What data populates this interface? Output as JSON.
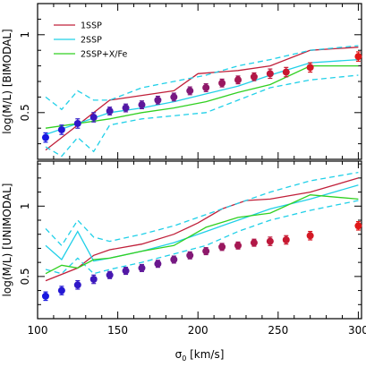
{
  "chart_data": [
    {
      "type": "line",
      "panel": "top",
      "ylabel": "log(M/L) [BIMODAL]",
      "xlim": [
        100,
        302
      ],
      "ylim": [
        0.2,
        1.2
      ],
      "yticks": [
        {
          "v": 0.5,
          "label": "0.5"
        },
        {
          "v": 1.0,
          "label": "1"
        }
      ],
      "legend": {
        "placement": "top-left",
        "entries": [
          {
            "label": "1SSP",
            "color": "#c0203a"
          },
          {
            "label": "2SSP",
            "color": "#20d0e8"
          },
          {
            "label": "2SSP+X/Fe",
            "color": "#30d020"
          }
        ]
      },
      "series": [
        {
          "key": "1ssp",
          "color": "#c0203a",
          "style": "solid",
          "x": [
            105,
            145,
            185,
            200,
            225,
            245,
            270,
            300
          ],
          "y": [
            0.26,
            0.58,
            0.64,
            0.75,
            0.77,
            0.8,
            0.9,
            0.92
          ]
        },
        {
          "key": "2ssp",
          "color": "#20d0e8",
          "style": "solid",
          "x": [
            105,
            125,
            145,
            165,
            185,
            205,
            225,
            245,
            270,
            300
          ],
          "y": [
            0.36,
            0.43,
            0.5,
            0.53,
            0.57,
            0.62,
            0.67,
            0.74,
            0.82,
            0.84
          ]
        },
        {
          "key": "2ssp_upper",
          "color": "#20d0e8",
          "style": "dashed",
          "x": [
            105,
            115,
            125,
            135,
            145,
            165,
            185,
            205,
            225,
            245,
            270,
            300
          ],
          "y": [
            0.6,
            0.52,
            0.64,
            0.58,
            0.58,
            0.66,
            0.7,
            0.74,
            0.8,
            0.84,
            0.9,
            0.93
          ]
        },
        {
          "key": "2ssp_lower",
          "color": "#20d0e8",
          "style": "dashed",
          "x": [
            105,
            115,
            125,
            135,
            145,
            165,
            185,
            205,
            225,
            245,
            270,
            300
          ],
          "y": [
            0.28,
            0.22,
            0.34,
            0.25,
            0.42,
            0.46,
            0.48,
            0.5,
            0.58,
            0.66,
            0.71,
            0.74
          ]
        },
        {
          "key": "2ssp_xfe",
          "color": "#30d020",
          "style": "solid",
          "x": [
            105,
            125,
            145,
            165,
            185,
            205,
            225,
            245,
            270,
            300
          ],
          "y": [
            0.4,
            0.43,
            0.46,
            0.5,
            0.53,
            0.57,
            0.63,
            0.68,
            0.8,
            0.8
          ]
        }
      ],
      "points": {
        "x": [
          105,
          115,
          125,
          135,
          145,
          155,
          165,
          175,
          185,
          195,
          205,
          215,
          225,
          235,
          245,
          255,
          270,
          300
        ],
        "y": [
          0.34,
          0.39,
          0.43,
          0.47,
          0.51,
          0.53,
          0.55,
          0.58,
          0.6,
          0.64,
          0.66,
          0.69,
          0.71,
          0.73,
          0.75,
          0.76,
          0.79,
          0.86
        ],
        "yerr": [
          0.03,
          0.03,
          0.03,
          0.03,
          0.025,
          0.025,
          0.025,
          0.025,
          0.025,
          0.025,
          0.025,
          0.025,
          0.025,
          0.025,
          0.03,
          0.03,
          0.03,
          0.03
        ]
      }
    },
    {
      "type": "line",
      "panel": "bottom",
      "ylabel": "log(M/L) [UNIMODAL]",
      "xlabel_parts": {
        "sym": "σ",
        "sub": "0",
        "rest": " [km/s]"
      },
      "xlim": [
        100,
        302
      ],
      "xticks": [
        {
          "v": 100,
          "label": "100"
        },
        {
          "v": 150,
          "label": "150"
        },
        {
          "v": 200,
          "label": "200"
        },
        {
          "v": 250,
          "label": "250"
        },
        {
          "v": 300,
          "label": "300"
        }
      ],
      "ylim": [
        0.2,
        1.32
      ],
      "yticks": [
        {
          "v": 0.5,
          "label": "0.5"
        },
        {
          "v": 1.0,
          "label": "1"
        }
      ],
      "series": [
        {
          "key": "1ssp",
          "color": "#c0203a",
          "style": "solid",
          "x": [
            105,
            125,
            135,
            145,
            165,
            185,
            200,
            215,
            230,
            245,
            270,
            300
          ],
          "y": [
            0.47,
            0.56,
            0.65,
            0.69,
            0.73,
            0.8,
            0.88,
            0.98,
            1.04,
            1.05,
            1.1,
            1.2
          ]
        },
        {
          "key": "2ssp",
          "color": "#20d0e8",
          "style": "solid",
          "x": [
            105,
            115,
            125,
            135,
            145,
            165,
            185,
            205,
            225,
            245,
            270,
            300
          ],
          "y": [
            0.72,
            0.62,
            0.82,
            0.61,
            0.63,
            0.68,
            0.74,
            0.82,
            0.9,
            0.98,
            1.05,
            1.15
          ]
        },
        {
          "key": "2ssp_upper",
          "color": "#20d0e8",
          "style": "dashed",
          "x": [
            105,
            115,
            125,
            135,
            145,
            165,
            185,
            205,
            225,
            245,
            270,
            300
          ],
          "y": [
            0.84,
            0.72,
            0.9,
            0.78,
            0.75,
            0.8,
            0.86,
            0.94,
            1.02,
            1.1,
            1.18,
            1.24
          ]
        },
        {
          "key": "2ssp_lower",
          "color": "#20d0e8",
          "style": "dashed",
          "x": [
            105,
            115,
            125,
            135,
            145,
            165,
            185,
            205,
            225,
            245,
            270,
            300
          ],
          "y": [
            0.55,
            0.52,
            0.63,
            0.52,
            0.55,
            0.6,
            0.66,
            0.72,
            0.82,
            0.9,
            0.97,
            1.04
          ]
        },
        {
          "key": "2ssp_xfe",
          "color": "#30d020",
          "style": "solid",
          "x": [
            105,
            115,
            125,
            135,
            145,
            165,
            185,
            205,
            225,
            245,
            270,
            300
          ],
          "y": [
            0.52,
            0.58,
            0.56,
            0.62,
            0.63,
            0.68,
            0.72,
            0.85,
            0.92,
            0.95,
            1.08,
            1.05
          ]
        }
      ],
      "points": {
        "x": [
          105,
          115,
          125,
          135,
          145,
          155,
          165,
          175,
          185,
          195,
          205,
          215,
          225,
          235,
          245,
          255,
          270,
          300
        ],
        "y": [
          0.36,
          0.4,
          0.44,
          0.48,
          0.51,
          0.54,
          0.56,
          0.59,
          0.62,
          0.65,
          0.68,
          0.71,
          0.72,
          0.74,
          0.75,
          0.76,
          0.79,
          0.86
        ],
        "yerr": [
          0.03,
          0.03,
          0.03,
          0.03,
          0.025,
          0.025,
          0.025,
          0.025,
          0.025,
          0.025,
          0.025,
          0.025,
          0.025,
          0.025,
          0.03,
          0.03,
          0.03,
          0.03
        ]
      }
    }
  ],
  "colors": {
    "point_low": "#1818e0",
    "point_high": "#e01818",
    "frame": "#000000"
  }
}
